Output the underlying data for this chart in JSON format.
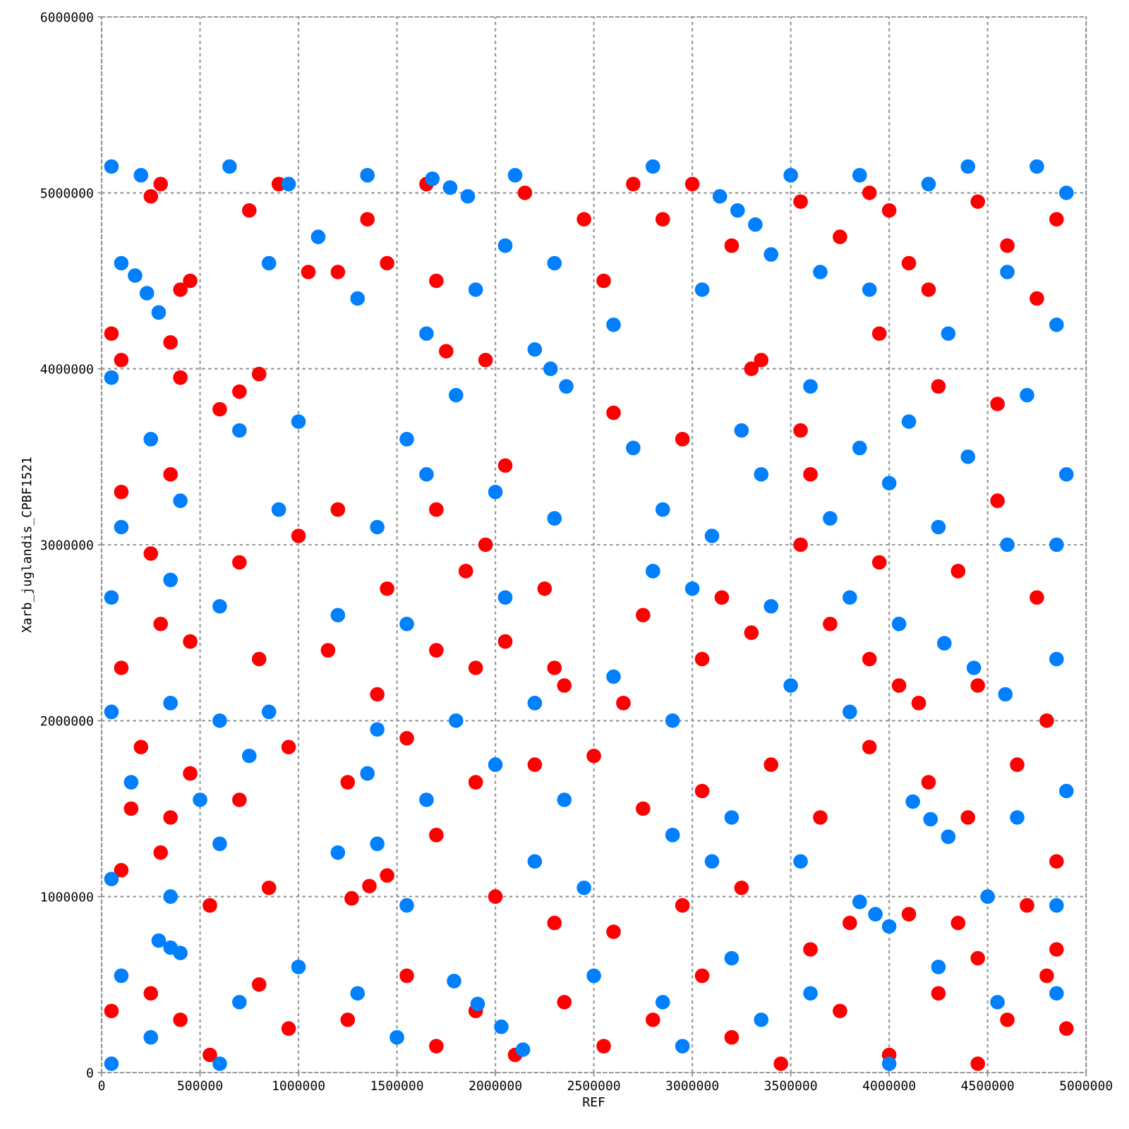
{
  "chart_data": {
    "type": "scatter",
    "xlabel": "REF",
    "ylabel": "Xarb_juglandis_CPBF1521",
    "xlim": [
      0,
      5000000
    ],
    "ylim": [
      0,
      6000000
    ],
    "xticks": [
      0,
      500000,
      1000000,
      1500000,
      2000000,
      2500000,
      3000000,
      3500000,
      4000000,
      4500000,
      5000000
    ],
    "yticks": [
      0,
      1000000,
      2000000,
      3000000,
      4000000,
      5000000,
      6000000
    ],
    "grid": true,
    "marker": "circle",
    "series": [
      {
        "color": "#ff0000",
        "x": [
          50000,
          100000,
          250000,
          300000,
          400000,
          450000,
          350000,
          400000,
          600000,
          700000,
          800000,
          750000,
          900000,
          1200000,
          1050000,
          1350000,
          1450000,
          1650000,
          1700000,
          1750000,
          1950000,
          2150000,
          2450000,
          2550000,
          2700000,
          2850000,
          3000000,
          3200000,
          3300000,
          3350000,
          3550000,
          3750000,
          3900000,
          4000000,
          4100000,
          4200000,
          4450000,
          4600000,
          4750000,
          4850000,
          3950000,
          4250000,
          4550000,
          3600000,
          3550000,
          2950000,
          2600000,
          2050000,
          1700000,
          1950000,
          1200000,
          1000000,
          350000,
          100000,
          250000,
          700000,
          1450000,
          1850000,
          2250000,
          2750000,
          3150000,
          3550000,
          3950000,
          4350000,
          4550000,
          4750000,
          100000,
          300000,
          450000,
          800000,
          1150000,
          1400000,
          1700000,
          1900000,
          2050000,
          2300000,
          2350000,
          2650000,
          3050000,
          3300000,
          3700000,
          3900000,
          4050000,
          4150000,
          4450000,
          4800000,
          200000,
          450000,
          150000,
          350000,
          700000,
          950000,
          1250000,
          1550000,
          1900000,
          2200000,
          2500000,
          2750000,
          3050000,
          3400000,
          3650000,
          3900000,
          4200000,
          4400000,
          4650000,
          4850000,
          100000,
          300000,
          550000,
          850000,
          1270000,
          1360000,
          1450000,
          1700000,
          2000000,
          2300000,
          2600000,
          2950000,
          3250000,
          3600000,
          3800000,
          4100000,
          4350000,
          4450000,
          4700000,
          4850000,
          50000,
          250000,
          400000,
          550000,
          800000,
          950000,
          1250000,
          1550000,
          1700000,
          1900000,
          2100000,
          2350000,
          2550000,
          2800000,
          3050000,
          3200000,
          3450000,
          3750000,
          4000000,
          4250000,
          4450000,
          4600000,
          4800000,
          4900000
        ],
        "values": [
          4200000,
          4050000,
          4980000,
          5050000,
          4450000,
          4500000,
          4150000,
          3950000,
          3770000,
          3870000,
          3970000,
          4900000,
          5050000,
          4550000,
          4550000,
          4850000,
          4600000,
          5050000,
          4500000,
          4100000,
          4050000,
          5000000,
          4850000,
          4500000,
          5050000,
          4850000,
          5050000,
          4700000,
          4000000,
          4050000,
          4950000,
          4750000,
          5000000,
          4900000,
          4600000,
          4450000,
          4950000,
          4700000,
          4400000,
          4850000,
          4200000,
          3900000,
          3800000,
          3400000,
          3650000,
          3600000,
          3750000,
          3450000,
          3200000,
          3000000,
          3200000,
          3050000,
          3400000,
          3300000,
          2950000,
          2900000,
          2750000,
          2850000,
          2750000,
          2600000,
          2700000,
          3000000,
          2900000,
          2850000,
          3250000,
          2700000,
          2300000,
          2550000,
          2450000,
          2350000,
          2400000,
          2150000,
          2400000,
          2300000,
          2450000,
          2300000,
          2200000,
          2100000,
          2350000,
          2500000,
          2550000,
          2350000,
          2200000,
          2100000,
          2200000,
          2000000,
          1850000,
          1700000,
          1500000,
          1450000,
          1550000,
          1850000,
          1650000,
          1900000,
          1650000,
          1750000,
          1800000,
          1500000,
          1600000,
          1750000,
          1450000,
          1850000,
          1650000,
          1450000,
          1750000,
          1200000,
          1150000,
          1250000,
          950000,
          1050000,
          990000,
          1060000,
          1120000,
          1350000,
          1000000,
          850000,
          800000,
          950000,
          1050000,
          700000,
          850000,
          900000,
          850000,
          650000,
          950000,
          700000,
          350000,
          450000,
          300000,
          100000,
          500000,
          250000,
          300000,
          550000,
          150000,
          350000,
          100000,
          400000,
          150000,
          300000,
          550000,
          200000,
          50000,
          350000,
          100000,
          450000,
          50000,
          300000,
          550000,
          250000
        ]
      },
      {
        "color": "#0080ff",
        "x": [
          50000,
          200000,
          650000,
          950000,
          1350000,
          1680000,
          1770000,
          1860000,
          2100000,
          2800000,
          3140000,
          3230000,
          3320000,
          3500000,
          3850000,
          4200000,
          4400000,
          4750000,
          4900000,
          100000,
          170000,
          230000,
          290000,
          850000,
          1100000,
          1300000,
          1650000,
          1900000,
          2050000,
          2300000,
          2600000,
          3050000,
          3400000,
          3650000,
          3900000,
          4300000,
          4600000,
          4850000,
          50000,
          250000,
          700000,
          1000000,
          1550000,
          1800000,
          2200000,
          2280000,
          2360000,
          2700000,
          3250000,
          3600000,
          3850000,
          4100000,
          4400000,
          4700000,
          4900000,
          100000,
          400000,
          900000,
          1400000,
          1650000,
          2000000,
          2300000,
          2850000,
          3100000,
          3350000,
          3700000,
          4000000,
          4250000,
          4600000,
          4850000,
          50000,
          350000,
          600000,
          1200000,
          1550000,
          2050000,
          2800000,
          3000000,
          3400000,
          3800000,
          4050000,
          4280000,
          4430000,
          4590000,
          4850000,
          50000,
          350000,
          600000,
          850000,
          1400000,
          1800000,
          2200000,
          2600000,
          2900000,
          3500000,
          3800000,
          150000,
          500000,
          750000,
          1350000,
          1650000,
          2000000,
          2350000,
          2900000,
          3200000,
          3550000,
          4120000,
          4210000,
          4300000,
          4650000,
          4900000,
          50000,
          350000,
          600000,
          1200000,
          1400000,
          1550000,
          2200000,
          2450000,
          3100000,
          3850000,
          3930000,
          4000000,
          4500000,
          4850000,
          290000,
          350000,
          400000,
          100000,
          700000,
          1000000,
          1300000,
          1790000,
          1910000,
          2030000,
          2140000,
          2500000,
          2850000,
          3200000,
          3600000,
          4000000,
          4250000,
          4550000,
          4850000,
          50000,
          250000,
          600000,
          1500000,
          2950000,
          3350000
        ],
        "values": [
          5150000,
          5100000,
          5150000,
          5050000,
          5100000,
          5080000,
          5030000,
          4980000,
          5100000,
          5150000,
          4980000,
          4900000,
          4820000,
          5100000,
          5100000,
          5050000,
          5150000,
          5150000,
          5000000,
          4600000,
          4530000,
          4430000,
          4320000,
          4600000,
          4750000,
          4400000,
          4200000,
          4450000,
          4700000,
          4600000,
          4250000,
          4450000,
          4650000,
          4550000,
          4450000,
          4200000,
          4550000,
          4250000,
          3950000,
          3600000,
          3650000,
          3700000,
          3600000,
          3850000,
          4110000,
          4000000,
          3900000,
          3550000,
          3650000,
          3900000,
          3550000,
          3700000,
          3500000,
          3850000,
          3400000,
          3100000,
          3250000,
          3200000,
          3100000,
          3400000,
          3300000,
          3150000,
          3200000,
          3050000,
          3400000,
          3150000,
          3350000,
          3100000,
          3000000,
          3000000,
          2700000,
          2800000,
          2650000,
          2600000,
          2550000,
          2700000,
          2850000,
          2750000,
          2650000,
          2700000,
          2550000,
          2440000,
          2300000,
          2150000,
          2350000,
          2050000,
          2100000,
          2000000,
          2050000,
          1950000,
          2000000,
          2100000,
          2250000,
          2000000,
          2200000,
          2050000,
          1650000,
          1550000,
          1800000,
          1700000,
          1550000,
          1750000,
          1550000,
          1350000,
          1450000,
          1200000,
          1540000,
          1440000,
          1340000,
          1450000,
          1600000,
          1100000,
          1000000,
          1300000,
          1250000,
          1300000,
          950000,
          1200000,
          1050000,
          1200000,
          970000,
          900000,
          830000,
          1000000,
          950000,
          750000,
          710000,
          680000,
          550000,
          400000,
          600000,
          450000,
          520000,
          390000,
          260000,
          130000,
          550000,
          400000,
          650000,
          450000,
          50000,
          600000,
          400000,
          450000,
          50000,
          200000,
          50000,
          200000,
          150000,
          300000
        ]
      }
    ]
  }
}
